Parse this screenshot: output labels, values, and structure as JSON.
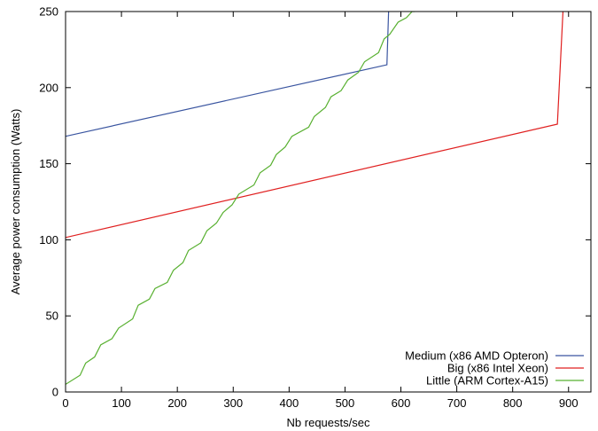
{
  "chart_data": {
    "type": "line",
    "title": "",
    "xlabel": "Nb requests/sec",
    "ylabel": "Average power consumption (Watts)",
    "xlim": [
      0,
      940
    ],
    "ylim": [
      0,
      250
    ],
    "xticks": [
      0,
      100,
      200,
      300,
      400,
      500,
      600,
      700,
      800,
      900
    ],
    "yticks": [
      0,
      50,
      100,
      150,
      200,
      250
    ],
    "grid": false,
    "legend_position": "bottom-right",
    "series": [
      {
        "name": "Medium (x86 AMD Opteron)",
        "color": "#3a55a0",
        "points": [
          [
            0,
            168
          ],
          [
            575,
            215
          ],
          [
            578,
            250
          ]
        ]
      },
      {
        "name": "Big (x86 Intel Xeon)",
        "color": "#e02020",
        "points": [
          [
            0,
            101.5
          ],
          [
            880,
            176
          ],
          [
            890,
            250
          ]
        ]
      },
      {
        "name": "Little (ARM Cortex-A15)",
        "color": "#58b030",
        "points": [
          [
            0,
            5
          ],
          [
            26,
            11
          ],
          [
            36,
            19
          ],
          [
            52,
            23
          ],
          [
            63,
            31
          ],
          [
            83,
            35
          ],
          [
            95,
            42
          ],
          [
            120,
            48
          ],
          [
            130,
            57
          ],
          [
            150,
            61
          ],
          [
            160,
            68
          ],
          [
            182,
            72
          ],
          [
            193,
            80
          ],
          [
            210,
            85
          ],
          [
            220,
            93
          ],
          [
            242,
            98
          ],
          [
            253,
            106
          ],
          [
            270,
            111
          ],
          [
            282,
            118
          ],
          [
            298,
            123
          ],
          [
            310,
            130
          ],
          [
            337,
            136
          ],
          [
            348,
            144
          ],
          [
            367,
            149
          ],
          [
            377,
            156
          ],
          [
            393,
            161
          ],
          [
            405,
            168
          ],
          [
            435,
            174
          ],
          [
            445,
            181
          ],
          [
            465,
            187
          ],
          [
            475,
            194
          ],
          [
            493,
            198
          ],
          [
            505,
            205
          ],
          [
            524,
            210
          ],
          [
            535,
            217
          ],
          [
            560,
            223
          ],
          [
            570,
            232
          ],
          [
            580,
            235
          ],
          [
            595,
            243
          ],
          [
            610,
            246
          ],
          [
            620,
            250
          ],
          [
            625,
            250
          ]
        ]
      }
    ]
  }
}
